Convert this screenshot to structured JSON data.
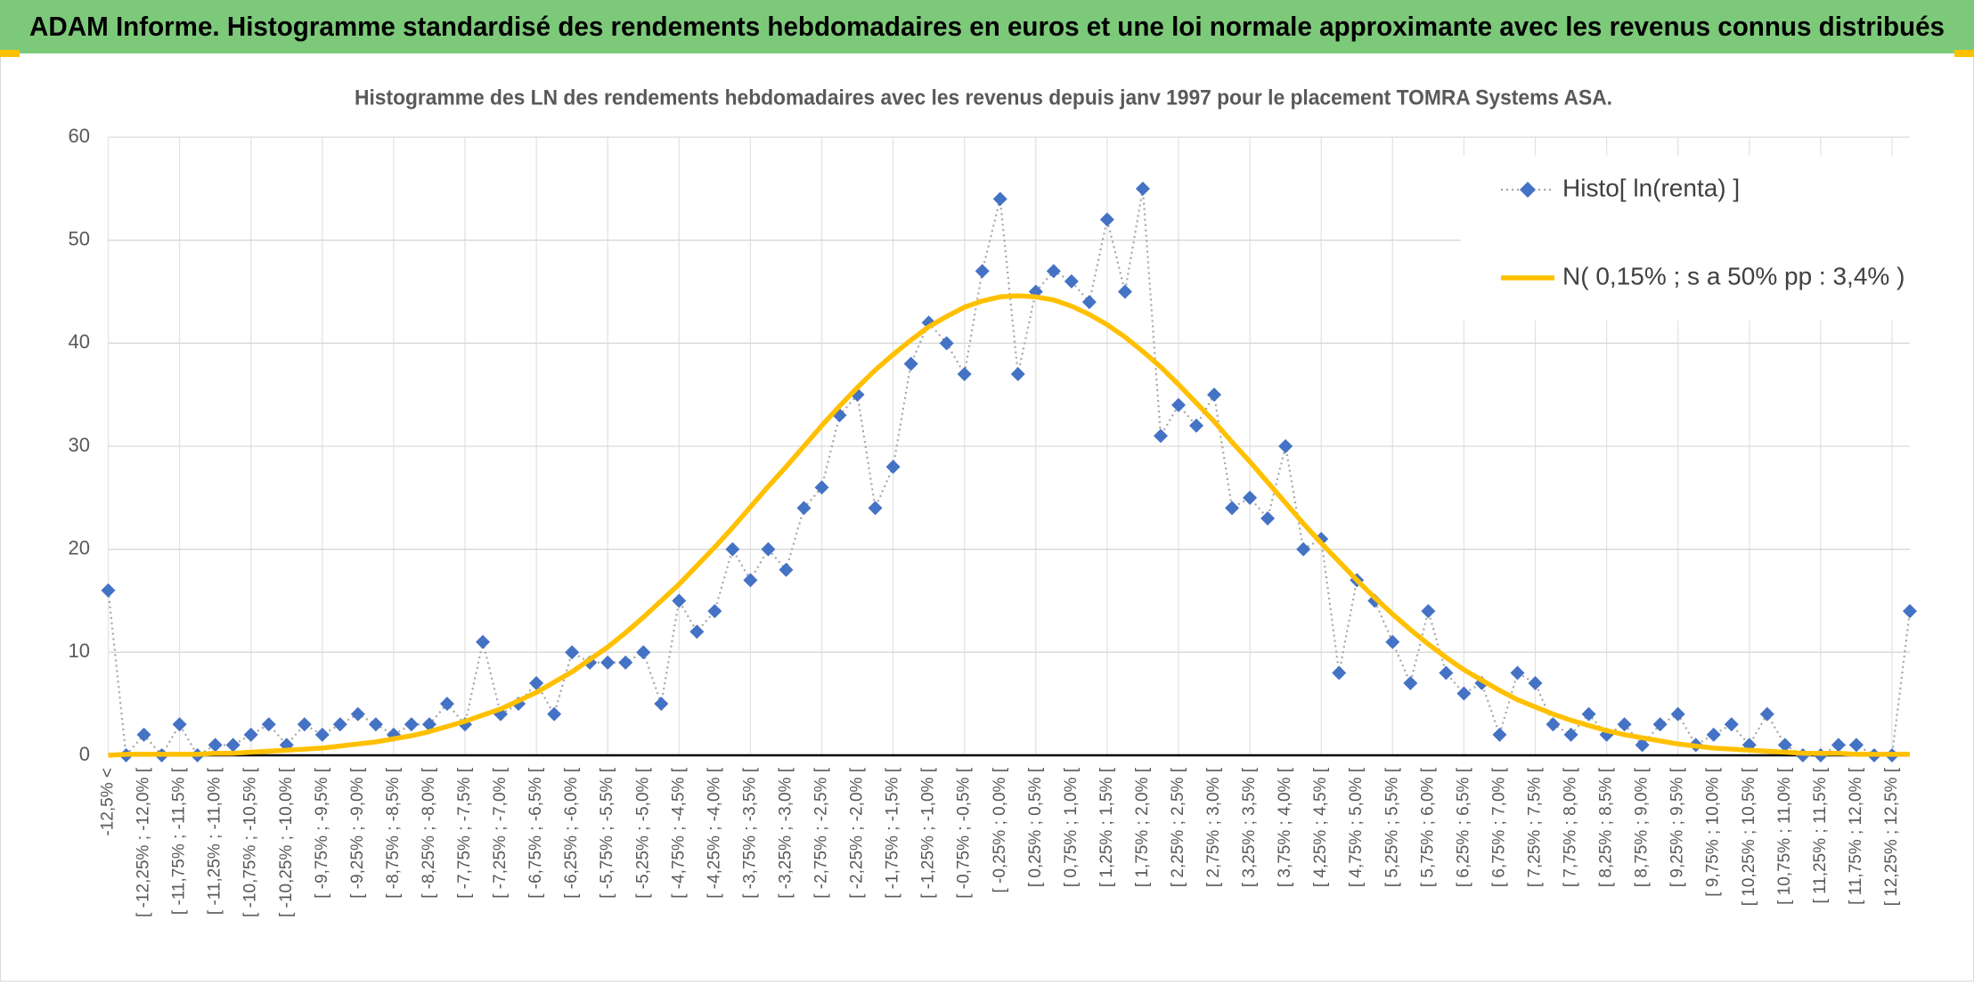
{
  "header": {
    "title": "ADAM Informe. Histogramme standardisé des rendements hebdomadaires en euros et une loi normale approximante avec les revenus connus distribués"
  },
  "chart_data": {
    "type": "line",
    "title": "Histogramme des LN des rendements hebdomadaires avec les revenus depuis janv 1997 pour le placement TOMRA Systems ASA.",
    "categories": [
      "-12,5% <",
      null,
      "[ -12,25% ; -12,0% [",
      null,
      "[ -11,75% ; -11,5% [",
      null,
      "[ -11,25% ; -11,0% [",
      null,
      "[ -10,75% ; -10,5% [",
      null,
      "[ -10,25% ; -10,0% [",
      null,
      "[ -9,75% ; -9,5% [",
      null,
      "[ -9,25% ; -9,0% [",
      null,
      "[ -8,75% ; -8,5% [",
      null,
      "[ -8,25% ; -8,0% [",
      null,
      "[ -7,75% ; -7,5% [",
      null,
      "[ -7,25% ; -7,0% [",
      null,
      "[ -6,75% ; -6,5% [",
      null,
      "[ -6,25% ; -6,0% [",
      null,
      "[ -5,75% ; -5,5% [",
      null,
      "[ -5,25% ; -5,0% [",
      null,
      "[ -4,75% ; -4,5% [",
      null,
      "[ -4,25% ; -4,0% [",
      null,
      "[ -3,75% ; -3,5% [",
      null,
      "[ -3,25% ; -3,0% [",
      null,
      "[ -2,75% ; -2,5% [",
      null,
      "[ -2,25% ; -2,0% [",
      null,
      "[ -1,75% ; -1,5% [",
      null,
      "[ -1,25% ; -1,0% [",
      null,
      "[ -0,75% ; -0,5% [",
      null,
      "[ -0,25% ; 0,0% [",
      null,
      "[ 0,25% ; 0,5% [",
      null,
      "[ 0,75% ; 1,0% [",
      null,
      "[ 1,25% ; 1,5% [",
      null,
      "[ 1,75% ; 2,0% [",
      null,
      "[ 2,25% ; 2,5% [",
      null,
      "[ 2,75% ; 3,0% [",
      null,
      "[ 3,25% ; 3,5% [",
      null,
      "[ 3,75% ; 4,0% [",
      null,
      "[ 4,25% ; 4,5% [",
      null,
      "[ 4,75% ; 5,0% [",
      null,
      "[ 5,25% ; 5,5% [",
      null,
      "[ 5,75% ; 6,0% [",
      null,
      "[ 6,25% ; 6,5% [",
      null,
      "[ 6,75% ; 7,0% [",
      null,
      "[ 7,25% ; 7,5% [",
      null,
      "[ 7,75% ; 8,0% [",
      null,
      "[ 8,25% ; 8,5% [",
      null,
      "[ 8,75% ; 9,0% [",
      null,
      "[ 9,25% ; 9,5% [",
      null,
      "[ 9,75% ; 10,0% [",
      null,
      "[ 10,25% ; 10,5% [",
      null,
      "[ 10,75% ; 11,0% [",
      null,
      "[ 11,25% ; 11,5% [",
      null,
      "[ 11,75% ; 12,0% [",
      null,
      "[ 12,25% ; 12,5% [",
      null
    ],
    "series": [
      {
        "name": "Histo[ ln(renta) ]",
        "color": "#4472c4",
        "line_color": "#a5a5a5",
        "marker": "diamond",
        "dashed": true,
        "values": [
          16,
          0,
          2,
          0,
          3,
          0,
          1,
          1,
          2,
          3,
          1,
          3,
          2,
          3,
          4,
          3,
          2,
          3,
          3,
          5,
          3,
          11,
          4,
          5,
          7,
          4,
          10,
          9,
          9,
          9,
          10,
          5,
          15,
          12,
          14,
          20,
          17,
          20,
          18,
          24,
          26,
          33,
          35,
          24,
          28,
          38,
          42,
          40,
          37,
          47,
          54,
          37,
          45,
          47,
          46,
          44,
          52,
          45,
          55,
          31,
          34,
          32,
          35,
          24,
          25,
          23,
          30,
          20,
          21,
          8,
          17,
          15,
          11,
          7,
          14,
          8,
          6,
          7,
          2,
          8,
          7,
          3,
          2,
          4,
          2,
          3,
          1,
          3,
          4,
          1,
          2,
          3,
          1,
          4,
          1,
          0,
          0,
          1,
          1,
          0,
          0,
          14
        ]
      },
      {
        "name": "N( 0,15% ; s a 50% pp : 3,4% )",
        "color": "#ffc000",
        "marker": "none",
        "dashed": false,
        "values": [
          0.0,
          0.1,
          0.1,
          0.1,
          0.1,
          0.1,
          0.2,
          0.2,
          0.3,
          0.4,
          0.5,
          0.6,
          0.7,
          0.9,
          1.1,
          1.3,
          1.6,
          1.9,
          2.3,
          2.8,
          3.3,
          3.9,
          4.5,
          5.3,
          6.1,
          7.1,
          8.1,
          9.3,
          10.5,
          11.9,
          13.4,
          15.0,
          16.6,
          18.4,
          20.2,
          22.1,
          24.1,
          26.1,
          28.0,
          30.0,
          32.0,
          33.9,
          35.7,
          37.4,
          38.9,
          40.3,
          41.6,
          42.6,
          43.5,
          44.1,
          44.5,
          44.6,
          44.5,
          44.2,
          43.6,
          42.8,
          41.8,
          40.6,
          39.2,
          37.7,
          36.0,
          34.2,
          32.4,
          30.4,
          28.5,
          26.5,
          24.5,
          22.5,
          20.6,
          18.8,
          17.0,
          15.3,
          13.7,
          12.2,
          10.8,
          9.5,
          8.3,
          7.3,
          6.3,
          5.4,
          4.7,
          4.0,
          3.4,
          2.9,
          2.4,
          2.0,
          1.7,
          1.4,
          1.1,
          0.9,
          0.7,
          0.6,
          0.5,
          0.4,
          0.3,
          0.2,
          0.2,
          0.2,
          0.1,
          0.1,
          0.1,
          0.1
        ]
      }
    ],
    "ylim": [
      0,
      60
    ],
    "yticks": [
      0,
      10,
      20,
      30,
      40,
      50,
      60
    ],
    "grid": true,
    "legend": "top-right"
  }
}
